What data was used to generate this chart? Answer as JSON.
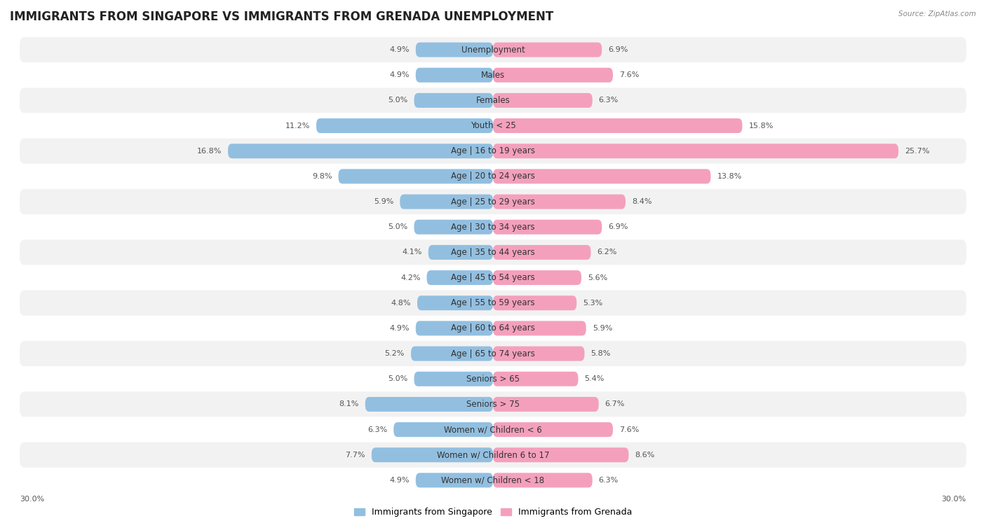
{
  "title": "IMMIGRANTS FROM SINGAPORE VS IMMIGRANTS FROM GRENADA UNEMPLOYMENT",
  "source": "Source: ZipAtlas.com",
  "categories": [
    "Unemployment",
    "Males",
    "Females",
    "Youth < 25",
    "Age | 16 to 19 years",
    "Age | 20 to 24 years",
    "Age | 25 to 29 years",
    "Age | 30 to 34 years",
    "Age | 35 to 44 years",
    "Age | 45 to 54 years",
    "Age | 55 to 59 years",
    "Age | 60 to 64 years",
    "Age | 65 to 74 years",
    "Seniors > 65",
    "Seniors > 75",
    "Women w/ Children < 6",
    "Women w/ Children 6 to 17",
    "Women w/ Children < 18"
  ],
  "singapore_values": [
    4.9,
    4.9,
    5.0,
    11.2,
    16.8,
    9.8,
    5.9,
    5.0,
    4.1,
    4.2,
    4.8,
    4.9,
    5.2,
    5.0,
    8.1,
    6.3,
    7.7,
    4.9
  ],
  "grenada_values": [
    6.9,
    7.6,
    6.3,
    15.8,
    25.7,
    13.8,
    8.4,
    6.9,
    6.2,
    5.6,
    5.3,
    5.9,
    5.8,
    5.4,
    6.7,
    7.6,
    8.6,
    6.3
  ],
  "singapore_color": "#92bfe0",
  "grenada_color": "#f4a0bc",
  "singapore_color_dark": "#5a9fd4",
  "grenada_color_dark": "#e8608a",
  "background_color": "#ffffff",
  "row_color_odd": "#f2f2f2",
  "row_color_even": "#ffffff",
  "axis_limit": 30.0,
  "legend_singapore": "Immigrants from Singapore",
  "legend_grenada": "Immigrants from Grenada",
  "title_fontsize": 12,
  "label_fontsize": 8.5,
  "value_fontsize": 8.0,
  "bottom_tick_label": "30.0%"
}
